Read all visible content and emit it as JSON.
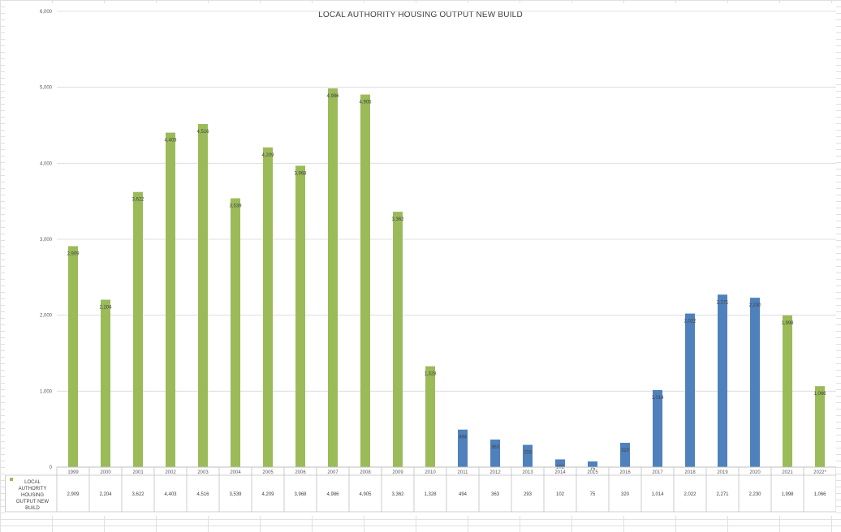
{
  "chart_data": {
    "type": "bar",
    "title": "LOCAL  AUTHORITY  HOUSING  OUTPUT NEW BUILD",
    "xlabel": "",
    "ylabel": "",
    "ylim": [
      0,
      6000
    ],
    "y_ticks": [
      "0",
      "1,000",
      "2,000",
      "3,000",
      "4,000",
      "5,000",
      "6,000"
    ],
    "grid": true,
    "categories": [
      "1999",
      "2000",
      "2001",
      "2002",
      "2003",
      "2004",
      "2005",
      "2006",
      "2007",
      "2008",
      "2009",
      "2010",
      "2011",
      "2012",
      "2013",
      "2014",
      "2015",
      "2016",
      "2017",
      "2018",
      "2019",
      "2020",
      "2021",
      "2022*"
    ],
    "values": [
      2909,
      2204,
      3622,
      4403,
      4516,
      3539,
      4209,
      3968,
      4986,
      4905,
      3362,
      1328,
      494,
      363,
      293,
      102,
      75,
      320,
      1014,
      2022,
      2271,
      2230,
      1998,
      1066
    ],
    "value_labels": [
      "2,909",
      "2,204",
      "3,622",
      "4,403",
      "4,516",
      "3,539",
      "4,209",
      "3,968",
      "4,986",
      "4,905",
      "3,362",
      "1,328",
      "494",
      "363",
      "293",
      "102",
      "75",
      "320",
      "1,014",
      "2,022",
      "2,271",
      "2,230",
      "1,998",
      "1,066"
    ],
    "bar_colors": [
      "#9bbb59",
      "#9bbb59",
      "#9bbb59",
      "#9bbb59",
      "#9bbb59",
      "#9bbb59",
      "#9bbb59",
      "#9bbb59",
      "#9bbb59",
      "#9bbb59",
      "#9bbb59",
      "#9bbb59",
      "#4f81bd",
      "#4f81bd",
      "#4f81bd",
      "#4f81bd",
      "#4f81bd",
      "#4f81bd",
      "#4f81bd",
      "#4f81bd",
      "#4f81bd",
      "#4f81bd",
      "#9bbb59",
      "#9bbb59"
    ],
    "series": [
      {
        "name": "LOCAL AUTHORITY HOUSING OUTPUT NEW BUILD",
        "color": "#9bbb59"
      }
    ],
    "data_table": true,
    "legend": "data-table-left"
  }
}
